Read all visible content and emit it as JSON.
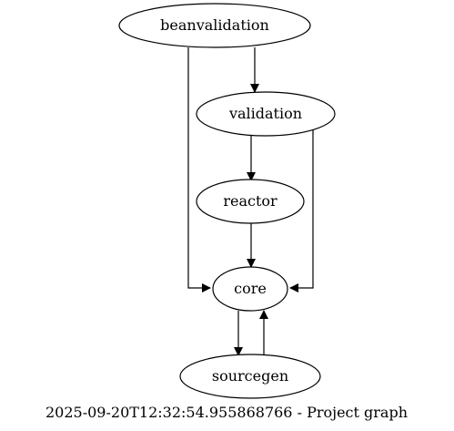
{
  "graph": {
    "nodes": [
      {
        "id": "beanvalidation",
        "label": "beanvalidation"
      },
      {
        "id": "validation",
        "label": "validation"
      },
      {
        "id": "reactor",
        "label": "reactor"
      },
      {
        "id": "core",
        "label": "core"
      },
      {
        "id": "sourcegen",
        "label": "sourcegen"
      }
    ],
    "edges": [
      {
        "from": "beanvalidation",
        "to": "validation"
      },
      {
        "from": "beanvalidation",
        "to": "core"
      },
      {
        "from": "validation",
        "to": "reactor"
      },
      {
        "from": "validation",
        "to": "core"
      },
      {
        "from": "reactor",
        "to": "core"
      },
      {
        "from": "core",
        "to": "sourcegen"
      },
      {
        "from": "sourcegen",
        "to": "core"
      }
    ],
    "caption": "2025-09-20T12:32:54.955868766 - Project graph"
  }
}
